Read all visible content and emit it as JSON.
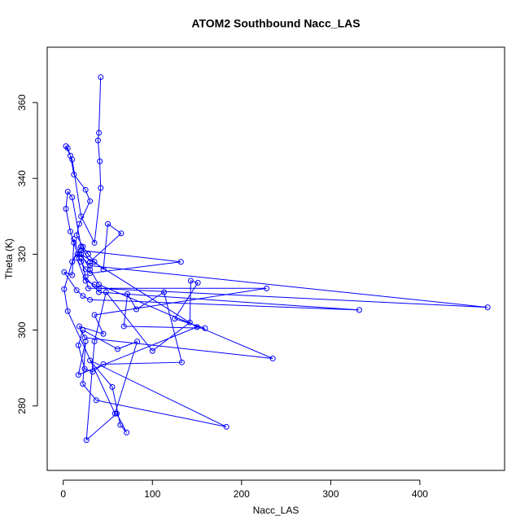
{
  "chart_data": {
    "type": "line",
    "title": "ATOM2 Southbound Nacc_LAS",
    "x_label": "Nacc_LAS",
    "y_label": "Theta (K)",
    "xlim": [
      -18,
      495
    ],
    "ylim": [
      263,
      374.6
    ],
    "xticks": [
      0,
      100,
      200,
      300,
      400
    ],
    "yticks": [
      280,
      300,
      320,
      340,
      360
    ],
    "series": [
      {
        "color": "#0000ff",
        "x": [
          42,
          40,
          39,
          41,
          42,
          35,
          20,
          10,
          3,
          5,
          8,
          12,
          25,
          30,
          18,
          15,
          22,
          28,
          35,
          45,
          50,
          65,
          30,
          20,
          10,
          5,
          3,
          8,
          12,
          16,
          20,
          25,
          30,
          132,
          20,
          15,
          25,
          35,
          40,
          476,
          30,
          18,
          12,
          10,
          1,
          15,
          22,
          30,
          332,
          40,
          25,
          20,
          28,
          228,
          35,
          45,
          18,
          24,
          235,
          40,
          30,
          20,
          150,
          17,
          25,
          22,
          37,
          183,
          30,
          55,
          64,
          71,
          60,
          26,
          35,
          48,
          100,
          142,
          143,
          151,
          125,
          159,
          68,
          72,
          82,
          113,
          133,
          45,
          33,
          24,
          17,
          22,
          61,
          83,
          58,
          5,
          1,
          10,
          20
        ],
        "y": [
          366.7,
          352,
          350,
          344.5,
          337.5,
          323,
          330,
          345,
          348.5,
          348,
          346,
          341,
          337,
          334,
          328,
          325,
          322,
          320,
          318,
          316,
          328,
          325.5,
          318,
          322,
          335,
          336.5,
          332,
          326,
          323,
          320,
          318,
          316,
          315,
          318,
          321,
          319,
          313,
          312,
          311,
          306,
          317,
          320,
          324,
          314.5,
          315.3,
          310.5,
          309,
          308,
          305.3,
          310,
          314,
          319,
          311,
          311,
          304,
          299,
          301,
          298,
          292.5,
          312,
          316,
          320,
          300.8,
          288.2,
          297,
          285.8,
          281.5,
          274.5,
          292,
          285,
          275,
          273,
          278,
          271,
          297,
          310,
          294.5,
          302,
          313,
          312.5,
          303,
          300.5,
          301,
          309.5,
          305.5,
          310,
          291.5,
          291,
          289,
          289.8,
          296,
          300,
          295,
          297,
          278,
          305,
          310.8,
          318,
          322
        ]
      }
    ]
  }
}
